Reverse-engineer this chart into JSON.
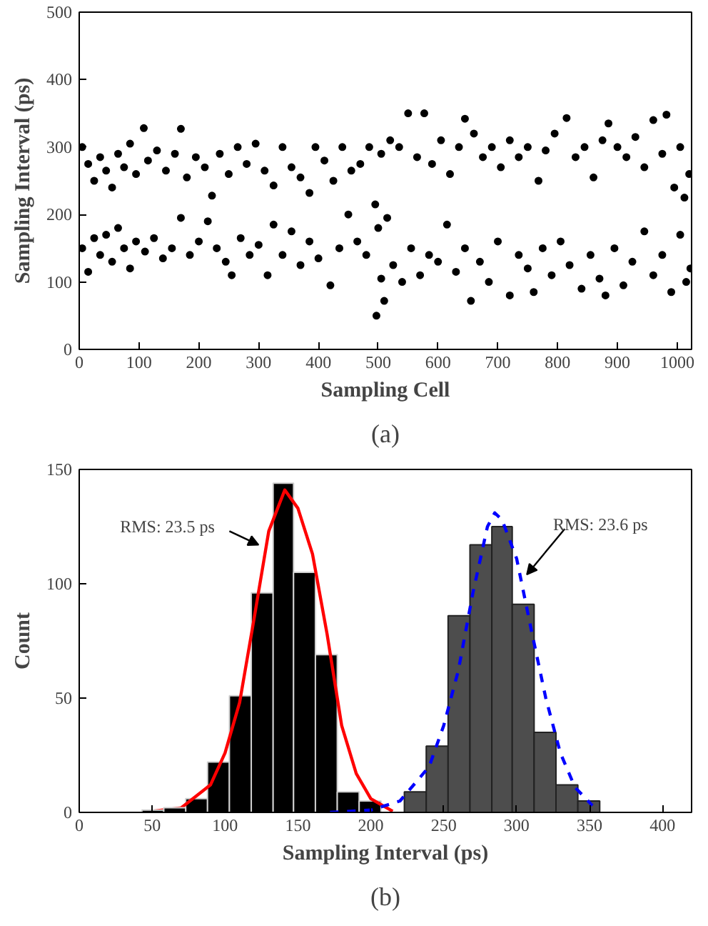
{
  "chart_data": [
    {
      "type": "scatter",
      "xlabel": "Sampling Cell",
      "ylabel": "Sampling Interval (ps)",
      "annotations": [
        "(a)"
      ],
      "marker": "circle",
      "color": "#000000",
      "xlim": [
        0,
        1024
      ],
      "ylim": [
        0,
        500
      ],
      "xticks": [
        0,
        100,
        200,
        300,
        400,
        500,
        600,
        700,
        800,
        900,
        1000
      ],
      "yticks": [
        0,
        100,
        200,
        300,
        400,
        500
      ],
      "x": [
        5,
        15,
        25,
        35,
        45,
        55,
        65,
        75,
        85,
        95,
        108,
        115,
        130,
        145,
        160,
        170,
        180,
        195,
        210,
        222,
        235,
        250,
        265,
        280,
        295,
        310,
        325,
        340,
        355,
        370,
        385,
        395,
        410,
        425,
        440,
        455,
        470,
        485,
        495,
        505,
        520,
        535,
        550,
        565,
        577,
        590,
        605,
        620,
        635,
        645,
        660,
        675,
        690,
        705,
        720,
        735,
        750,
        768,
        780,
        795,
        815,
        830,
        845,
        860,
        875,
        885,
        900,
        915,
        930,
        945,
        960,
        975,
        982,
        995,
        1005,
        1012,
        1020,
        5,
        15,
        25,
        35,
        45,
        55,
        65,
        75,
        85,
        95,
        110,
        125,
        140,
        155,
        170,
        185,
        200,
        215,
        230,
        245,
        255,
        270,
        285,
        300,
        315,
        325,
        340,
        355,
        370,
        385,
        400,
        420,
        435,
        450,
        465,
        480,
        497,
        500,
        505,
        510,
        515,
        525,
        540,
        555,
        570,
        585,
        600,
        615,
        630,
        645,
        655,
        670,
        685,
        700,
        720,
        735,
        750,
        760,
        775,
        790,
        805,
        820,
        840,
        855,
        870,
        880,
        895,
        910,
        925,
        945,
        960,
        975,
        990,
        1005,
        1015,
        1022
      ],
      "values": [
        300,
        275,
        250,
        285,
        265,
        240,
        290,
        270,
        305,
        260,
        328,
        280,
        295,
        265,
        290,
        327,
        255,
        285,
        270,
        228,
        290,
        260,
        300,
        275,
        305,
        265,
        243,
        300,
        270,
        255,
        232,
        300,
        280,
        250,
        300,
        265,
        275,
        300,
        215,
        290,
        310,
        300,
        350,
        285,
        350,
        275,
        310,
        260,
        300,
        342,
        320,
        285,
        300,
        270,
        310,
        285,
        300,
        250,
        295,
        320,
        343,
        285,
        300,
        255,
        310,
        335,
        300,
        285,
        315,
        270,
        340,
        290,
        348,
        240,
        300,
        225,
        260,
        150,
        115,
        165,
        140,
        170,
        130,
        180,
        150,
        120,
        160,
        145,
        165,
        135,
        150,
        195,
        140,
        160,
        190,
        150,
        130,
        110,
        165,
        140,
        155,
        110,
        185,
        140,
        175,
        125,
        160,
        135,
        95,
        150,
        200,
        160,
        140,
        50,
        180,
        105,
        72,
        195,
        125,
        100,
        150,
        110,
        140,
        130,
        185,
        115,
        150,
        72,
        130,
        100,
        160,
        80,
        140,
        120,
        85,
        150,
        110,
        160,
        125,
        90,
        140,
        105,
        80,
        150,
        95,
        130,
        175,
        110,
        140,
        85,
        170,
        100,
        120
      ]
    },
    {
      "type": "histogram",
      "xlabel": "Sampling Interval (ps)",
      "ylabel": "Count",
      "xlim": [
        0,
        420
      ],
      "ylim": [
        0,
        150
      ],
      "xticks": [
        0,
        50,
        100,
        150,
        200,
        250,
        300,
        350,
        400
      ],
      "yticks": [
        0,
        50,
        100,
        150
      ],
      "annotations": [
        {
          "text": "RMS: 23.5 ps",
          "x": 123,
          "y": 117
        },
        {
          "text": "RMS: 23.6 ps",
          "x": 307,
          "y": 104
        },
        "(b)"
      ],
      "series": [
        {
          "type": "histogram",
          "color": "#000000",
          "bins": [
            43,
            58,
            73,
            88,
            103,
            118,
            133,
            147,
            162,
            177,
            192,
            207
          ],
          "values": [
            1,
            2,
            6,
            22,
            51,
            96,
            144,
            105,
            69,
            9,
            5
          ]
        },
        {
          "type": "histogram",
          "color": "#4d4d4d",
          "bins": [
            223,
            238,
            253,
            268,
            283,
            297,
            312,
            327,
            342,
            357
          ],
          "values": [
            9,
            29,
            86,
            117,
            125,
            91,
            35,
            12,
            5
          ]
        },
        {
          "type": "line",
          "color": "#ff0000",
          "line_style": "solid",
          "x": [
            50,
            70,
            90,
            100,
            110,
            120,
            130,
            141,
            150,
            160,
            170,
            180,
            190,
            200,
            215
          ],
          "values": [
            0.5,
            2,
            12,
            26,
            48,
            85,
            123,
            141,
            133,
            113,
            78,
            38,
            17,
            6,
            0.5
          ]
        },
        {
          "type": "line",
          "color": "#0000ff",
          "line_style": "dashed",
          "x": [
            172,
            200,
            220,
            240,
            250,
            260,
            270,
            280,
            285,
            290,
            300,
            310,
            320,
            330,
            340,
            352
          ],
          "values": [
            0,
            1,
            5,
            20,
            38,
            62,
            96,
            125,
            131,
            128,
            111,
            80,
            50,
            26,
            11,
            3
          ]
        }
      ]
    }
  ]
}
